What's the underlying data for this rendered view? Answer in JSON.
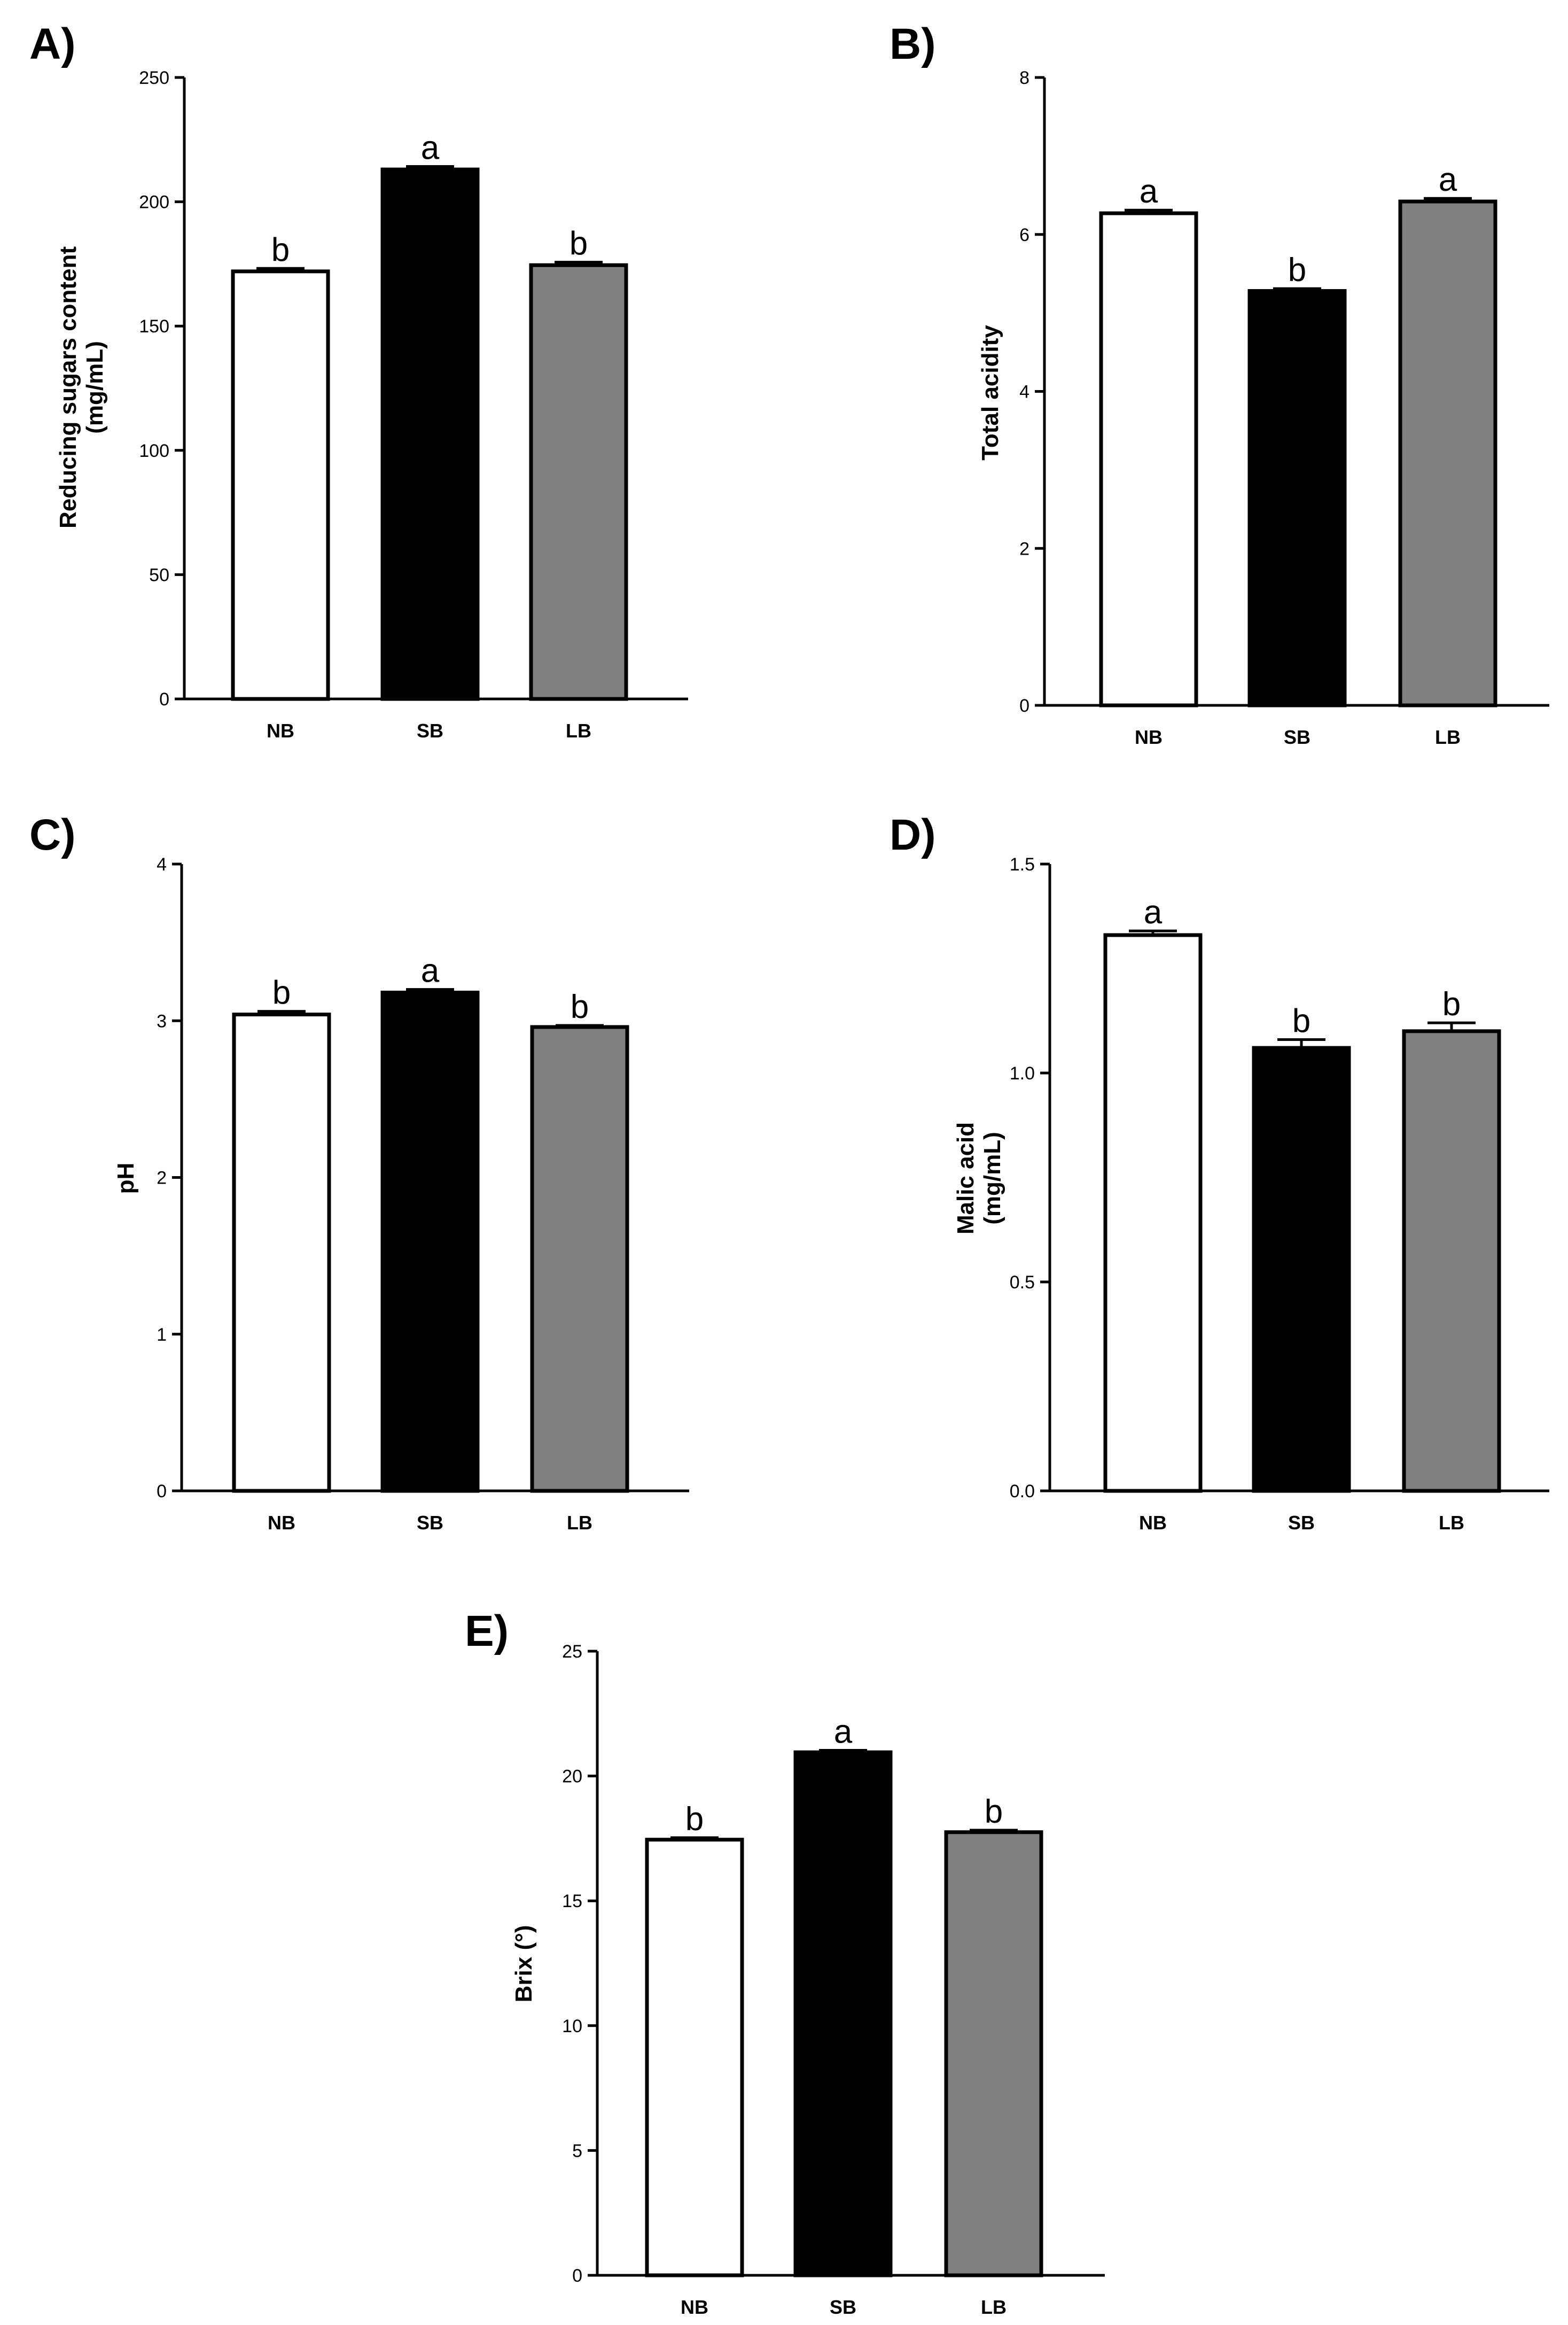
{
  "figure": {
    "title": "",
    "bar_colors": {
      "NB": "#ffffff",
      "SB": "#000000",
      "LB": "#808080"
    },
    "outline_color": "#000000"
  },
  "chart_data": [
    {
      "panel": "A)",
      "type": "bar",
      "title": "",
      "categories": [
        "NB",
        "SB",
        "LB"
      ],
      "values": [
        172,
        213,
        174.5
      ],
      "errors": [
        1.2,
        1.2,
        1.2
      ],
      "significance": [
        "b",
        "a",
        "b"
      ],
      "ylabel": [
        "Reducing sugars content",
        "(mg/mL)"
      ],
      "xlabel": "",
      "ylim": [
        0,
        250
      ],
      "yticks": [
        "0",
        "50",
        "100",
        "150",
        "200",
        "250"
      ],
      "ytick_values": [
        0,
        50,
        100,
        150,
        200,
        250
      ]
    },
    {
      "panel": "B)",
      "type": "bar",
      "title": "",
      "categories": [
        "NB",
        "SB",
        "LB"
      ],
      "values": [
        6.27,
        5.28,
        6.42
      ],
      "errors": [
        0.04,
        0.03,
        0.04
      ],
      "significance": [
        "a",
        "b",
        "a"
      ],
      "ylabel": [
        "Total acidity"
      ],
      "xlabel": "",
      "ylim": [
        0,
        8
      ],
      "yticks": [
        "0",
        "2",
        "4",
        "6",
        "8"
      ],
      "ytick_values": [
        0,
        2,
        4,
        6,
        8
      ]
    },
    {
      "panel": "C)",
      "type": "bar",
      "title": "",
      "categories": [
        "NB",
        "SB",
        "LB"
      ],
      "values": [
        3.04,
        3.18,
        2.96
      ],
      "errors": [
        0.02,
        0.02,
        0.01
      ],
      "significance": [
        "b",
        "a",
        "b"
      ],
      "ylabel": [
        "pH"
      ],
      "xlabel": "",
      "ylim": [
        0,
        4
      ],
      "yticks": [
        "0",
        "1",
        "2",
        "3",
        "4"
      ],
      "ytick_values": [
        0,
        1,
        2,
        3,
        4
      ]
    },
    {
      "panel": "D)",
      "type": "bar",
      "title": "",
      "categories": [
        "NB",
        "SB",
        "LB"
      ],
      "values": [
        1.33,
        1.06,
        1.1
      ],
      "errors": [
        0.01,
        0.02,
        0.02
      ],
      "significance": [
        "a",
        "b",
        "b"
      ],
      "ylabel": [
        "Malic acid",
        "(mg/mL)"
      ],
      "xlabel": "",
      "ylim": [
        0,
        1.5
      ],
      "yticks": [
        "0.0",
        "0.5",
        "1.0",
        "1.5"
      ],
      "ytick_values": [
        0,
        0.5,
        1.0,
        1.5
      ]
    },
    {
      "panel": "E)",
      "type": "bar",
      "title": "",
      "categories": [
        "NB",
        "SB",
        "LB"
      ],
      "values": [
        17.45,
        20.95,
        17.75
      ],
      "errors": [
        0.08,
        0.08,
        0.08
      ],
      "significance": [
        "b",
        "a",
        "b"
      ],
      "ylabel": [
        "Brix (°)"
      ],
      "xlabel": "",
      "ylim": [
        0,
        25
      ],
      "yticks": [
        "0",
        "5",
        "10",
        "15",
        "20",
        "25"
      ],
      "ytick_values": [
        0,
        5,
        10,
        15,
        20,
        25
      ]
    }
  ]
}
